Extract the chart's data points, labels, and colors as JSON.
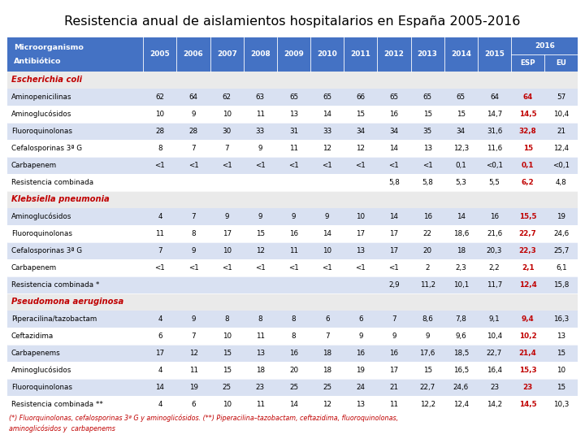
{
  "title": "Resistencia anual de aislamientos hospitalarios en España 2005-2016",
  "header_bg": "#4472C4",
  "header_text_color": "#FFFFFF",
  "section_text_color": "#C00000",
  "esp_color": "#C00000",
  "row_even_color": "#D9E1F2",
  "row_odd_color": "#FFFFFF",
  "section_bg": "#F2F2F2",
  "years": [
    "2005",
    "2006",
    "2007",
    "2008",
    "2009",
    "2010",
    "2011",
    "2012",
    "2013",
    "2014",
    "2015"
  ],
  "sections": [
    {
      "name": "Escherichia coli",
      "rows": [
        {
          "label": "Aminopenicilinas",
          "vals": [
            "62",
            "64",
            "62",
            "63",
            "65",
            "65",
            "66",
            "65",
            "65",
            "65",
            "64"
          ],
          "esp": "64",
          "eu": "57"
        },
        {
          "label": "Aminoglucósidos",
          "vals": [
            "10",
            "9",
            "10",
            "11",
            "13",
            "14",
            "15",
            "16",
            "15",
            "15",
            "14,7"
          ],
          "esp": "14,5",
          "eu": "10,4"
        },
        {
          "label": "Fluoroquinolonas",
          "vals": [
            "28",
            "28",
            "30",
            "33",
            "31",
            "33",
            "34",
            "34",
            "35",
            "34",
            "31,6"
          ],
          "esp": "32,8",
          "eu": "21"
        },
        {
          "label": "Cefalosporinas 3ª G",
          "vals": [
            "8",
            "7",
            "7",
            "9",
            "11",
            "12",
            "12",
            "14",
            "13",
            "12,3",
            "11,6"
          ],
          "esp": "15",
          "eu": "12,4"
        },
        {
          "label": "Carbapenem",
          "vals": [
            "<1",
            "<1",
            "<1",
            "<1",
            "<1",
            "<1",
            "<1",
            "<1",
            "<1",
            "0,1",
            "<0,1"
          ],
          "esp": "0,1",
          "eu": "<0,1"
        },
        {
          "label": "Resistencia combinada",
          "vals": [
            "",
            "",
            "",
            "",
            "",
            "",
            "",
            "5,8",
            "5,8",
            "5,3",
            "5,5"
          ],
          "esp": "6,2",
          "eu": "4,8"
        }
      ]
    },
    {
      "name": "Klebsiella pneumonia",
      "rows": [
        {
          "label": "Aminoglucósidos",
          "vals": [
            "4",
            "7",
            "9",
            "9",
            "9",
            "9",
            "10",
            "14",
            "16",
            "14",
            "16"
          ],
          "esp": "15,5",
          "eu": "19"
        },
        {
          "label": "Fluoroquinolonas",
          "vals": [
            "11",
            "8",
            "17",
            "15",
            "16",
            "14",
            "17",
            "17",
            "22",
            "18,6",
            "21,6"
          ],
          "esp": "22,7",
          "eu": "24,6"
        },
        {
          "label": "Cefalosporinas 3ª G",
          "vals": [
            "7",
            "9",
            "10",
            "12",
            "11",
            "10",
            "13",
            "17",
            "20",
            "18",
            "20,3"
          ],
          "esp": "22,3",
          "eu": "25,7"
        },
        {
          "label": "Carbapenem",
          "vals": [
            "<1",
            "<1",
            "<1",
            "<1",
            "<1",
            "<1",
            "<1",
            "<1",
            "2",
            "2,3",
            "2,2"
          ],
          "esp": "2,1",
          "eu": "6,1"
        },
        {
          "label": "Resistencia combinada *",
          "vals": [
            "",
            "",
            "",
            "",
            "",
            "",
            "",
            "2,9",
            "11,2",
            "10,1",
            "11,7"
          ],
          "esp": "12,4",
          "eu": "15,8"
        }
      ]
    },
    {
      "name": "Pseudomona aeruginosa",
      "rows": [
        {
          "label": "Piperacilina/tazobactam",
          "vals": [
            "4",
            "9",
            "8",
            "8",
            "8",
            "6",
            "6",
            "7",
            "8,6",
            "7,8",
            "9,1"
          ],
          "esp": "9,4",
          "eu": "16,3"
        },
        {
          "label": "Ceftazidima",
          "vals": [
            "6",
            "7",
            "10",
            "11",
            "8",
            "7",
            "9",
            "9",
            "9",
            "9,6",
            "10,4"
          ],
          "esp": "10,2",
          "eu": "13"
        },
        {
          "label": "Carbapenems",
          "vals": [
            "17",
            "12",
            "15",
            "13",
            "16",
            "18",
            "16",
            "16",
            "17,6",
            "18,5",
            "22,7"
          ],
          "esp": "21,4",
          "eu": "15"
        },
        {
          "label": "Aminoglucósidos",
          "vals": [
            "4",
            "11",
            "15",
            "18",
            "20",
            "18",
            "19",
            "17",
            "15",
            "16,5",
            "16,4"
          ],
          "esp": "15,3",
          "eu": "10"
        },
        {
          "label": "Fluoroquinolonas",
          "vals": [
            "14",
            "19",
            "25",
            "23",
            "25",
            "25",
            "24",
            "21",
            "22,7",
            "24,6",
            "23"
          ],
          "esp": "23",
          "eu": "15"
        },
        {
          "label": "Resistencia combinada **",
          "vals": [
            "4",
            "6",
            "10",
            "11",
            "14",
            "12",
            "13",
            "11",
            "12,2",
            "12,4",
            "14,2"
          ],
          "esp": "14,5",
          "eu": "10,3"
        }
      ]
    }
  ],
  "footnote1": "(*) Fluorquinolonas, cefalosporinas 3ª G y aminoglicósidos. (**) Piperacilina–tazobactam, ceftazidima, fluoroquinolonas,",
  "footnote2": "aminoglicósidos y  carbapenems"
}
